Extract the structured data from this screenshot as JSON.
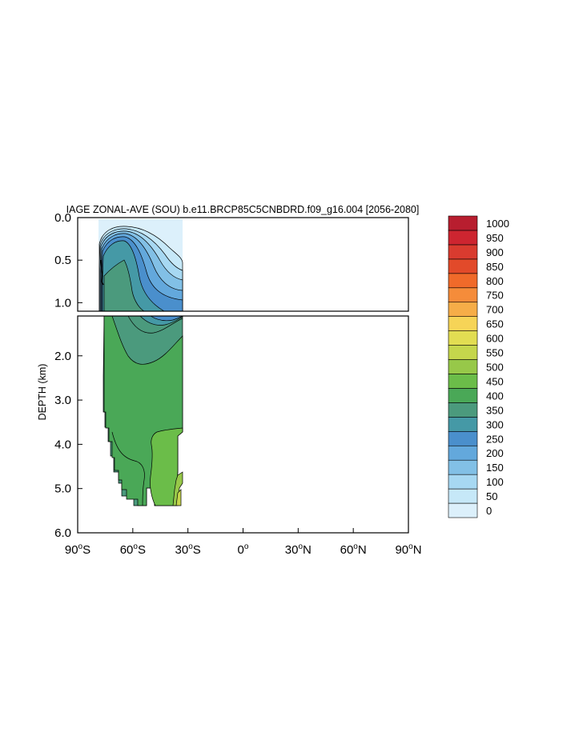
{
  "chart_data": {
    "type": "heatmap",
    "title": "IAGE ZONAL-AVE (SOU) b.e11.BRCP85C5CNBDRD.f09_g16.004 [2056-2080]",
    "ylabel": "DEPTH (km)",
    "xlabel": "",
    "x_ticks": [
      {
        "value": -90,
        "num": "90",
        "hemi": "S"
      },
      {
        "value": -60,
        "num": "60",
        "hemi": "S"
      },
      {
        "value": -30,
        "num": "30",
        "hemi": "S"
      },
      {
        "value": 0,
        "num": "0",
        "hemi": ""
      },
      {
        "value": 30,
        "num": "30",
        "hemi": "N"
      },
      {
        "value": 60,
        "num": "60",
        "hemi": "N"
      },
      {
        "value": 90,
        "num": "90",
        "hemi": "N"
      }
    ],
    "y_upper": {
      "range": [
        0,
        1.1
      ],
      "ticks": [
        "0.0",
        "0.5",
        "1.0"
      ]
    },
    "y_lower": {
      "range": [
        1.1,
        6.0
      ],
      "ticks": [
        "2.0",
        "3.0",
        "4.0",
        "5.0",
        "6.0"
      ]
    },
    "colorbar": {
      "levels": [
        "0",
        "50",
        "100",
        "150",
        "200",
        "250",
        "300",
        "350",
        "400",
        "450",
        "500",
        "550",
        "600",
        "650",
        "700",
        "750",
        "800",
        "850",
        "900",
        "950",
        "1000"
      ],
      "colors": [
        "#dcf0fb",
        "#c6e8f8",
        "#a7d8f2",
        "#82c0e6",
        "#63a8dc",
        "#4a8fcc",
        "#4599a6",
        "#4b9a7d",
        "#4aa857",
        "#6bbd49",
        "#97c849",
        "#c5d64c",
        "#e2dd52",
        "#f6d457",
        "#f6ad48",
        "#f58c3a",
        "#f06a2a",
        "#e24a2a",
        "#d93b2f",
        "#cd2530",
        "#b81e2f"
      ]
    }
  }
}
